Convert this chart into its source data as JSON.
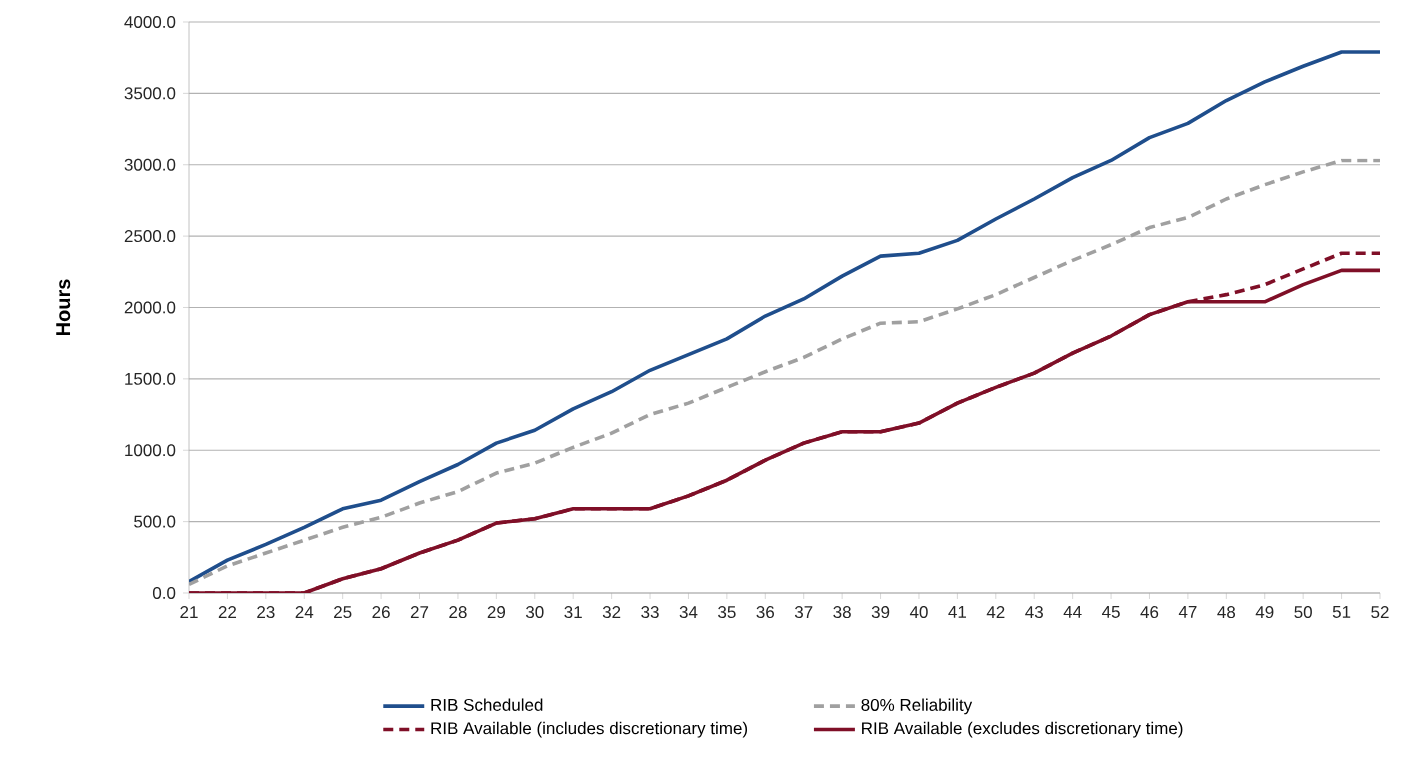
{
  "chart_data": {
    "type": "line",
    "ylabel": "Hours",
    "x": [
      21,
      22,
      23,
      24,
      25,
      26,
      27,
      28,
      29,
      30,
      31,
      32,
      33,
      34,
      35,
      36,
      37,
      38,
      39,
      40,
      41,
      42,
      43,
      44,
      45,
      46,
      47,
      48,
      49,
      50,
      51,
      52
    ],
    "xlim": [
      21,
      52
    ],
    "xticks": [
      21,
      22,
      23,
      24,
      25,
      26,
      27,
      28,
      29,
      30,
      31,
      32,
      33,
      34,
      35,
      36,
      37,
      38,
      39,
      40,
      41,
      42,
      43,
      44,
      45,
      46,
      47,
      48,
      49,
      50,
      51,
      52
    ],
    "ylim": [
      0,
      4000
    ],
    "yticks": [
      {
        "value": 0,
        "label": "0.0"
      },
      {
        "value": 500,
        "label": "500.0"
      },
      {
        "value": 1000,
        "label": "1000.0"
      },
      {
        "value": 1500,
        "label": "1500.0"
      },
      {
        "value": 2000,
        "label": "2000.0"
      },
      {
        "value": 2500,
        "label": "2500.0"
      },
      {
        "value": 3000,
        "label": "3000.0"
      },
      {
        "value": 3500,
        "label": "3500.0"
      },
      {
        "value": 4000,
        "label": "4000.0"
      }
    ],
    "grid": "y",
    "legend": "bottom",
    "marker": "none",
    "series": [
      {
        "name": "RIB Scheduled",
        "color": "#1f4e8c",
        "line_style": "solid",
        "values": [
          80,
          230,
          340,
          460,
          590,
          650,
          780,
          900,
          1050,
          1140,
          1290,
          1410,
          1560,
          1670,
          1780,
          1940,
          2060,
          2220,
          2360,
          2380,
          2470,
          2620,
          2760,
          2910,
          3030,
          3190,
          3290,
          3450,
          3580,
          3690,
          3790,
          3790
        ]
      },
      {
        "name": "80% Reliability",
        "color": "#a0a0a0",
        "line_style": "dashed",
        "values": [
          60,
          190,
          280,
          370,
          460,
          530,
          630,
          710,
          840,
          910,
          1020,
          1120,
          1250,
          1330,
          1440,
          1550,
          1650,
          1780,
          1890,
          1900,
          1990,
          2090,
          2210,
          2330,
          2440,
          2560,
          2630,
          2760,
          2860,
          2950,
          3030,
          3030
        ]
      },
      {
        "name": "RIB Available (includes discretionary time)",
        "color": "#7f0f27",
        "line_style": "dashed",
        "values": [
          0,
          0,
          0,
          0,
          100,
          170,
          280,
          370,
          490,
          520,
          590,
          590,
          590,
          680,
          790,
          930,
          1050,
          1130,
          1130,
          1190,
          1330,
          1440,
          1540,
          1680,
          1800,
          1950,
          2040,
          2090,
          2160,
          2270,
          2380,
          2380
        ]
      },
      {
        "name": "RIB Available (excludes discretionary time)",
        "color": "#7f0f27",
        "line_style": "solid",
        "values": [
          0,
          0,
          0,
          0,
          100,
          170,
          280,
          370,
          490,
          520,
          590,
          590,
          590,
          680,
          790,
          930,
          1050,
          1130,
          1130,
          1190,
          1330,
          1440,
          1540,
          1680,
          1800,
          1950,
          2040,
          2040,
          2040,
          2160,
          2260,
          2260
        ]
      }
    ]
  }
}
